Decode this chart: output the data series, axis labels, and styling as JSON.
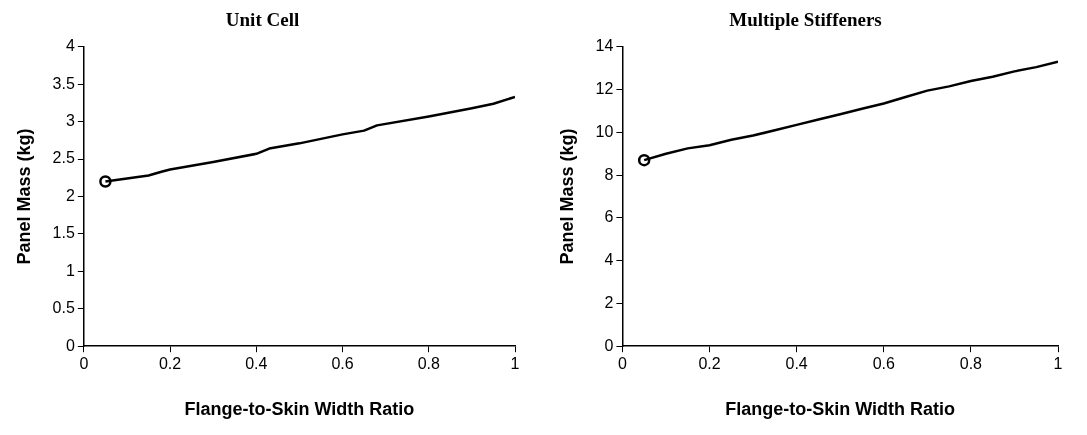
{
  "chart_data": [
    {
      "type": "line",
      "title": "Unit Cell",
      "xlabel": "Flange-to-Skin Width Ratio",
      "ylabel": "Panel Mass (kg)",
      "xlim": [
        0,
        1
      ],
      "xticks": [
        0,
        0.2,
        0.4,
        0.6,
        0.8,
        1
      ],
      "ylim": [
        0,
        4
      ],
      "yticks": [
        0,
        0.5,
        1,
        1.5,
        2,
        2.5,
        3,
        3.5,
        4
      ],
      "grid": false,
      "legend": false,
      "series": [
        {
          "color": "#000000",
          "marker": "none",
          "x": [
            0.05,
            0.1,
            0.15,
            0.18,
            0.2,
            0.3,
            0.4,
            0.43,
            0.5,
            0.6,
            0.65,
            0.68,
            0.8,
            0.9,
            0.95,
            1.0
          ],
          "values": [
            2.2,
            2.24,
            2.28,
            2.33,
            2.36,
            2.46,
            2.57,
            2.64,
            2.71,
            2.83,
            2.88,
            2.95,
            3.07,
            3.18,
            3.24,
            3.33
          ]
        },
        {
          "type": "scatter",
          "color": "#000000",
          "marker": "circle",
          "x": [
            0.05
          ],
          "values": [
            2.2
          ]
        }
      ]
    },
    {
      "type": "line",
      "title": "Multiple Stiffeners",
      "xlabel": "Flange-to-Skin Width Ratio",
      "ylabel": "Panel Mass (kg)",
      "xlim": [
        0,
        1
      ],
      "xticks": [
        0,
        0.2,
        0.4,
        0.6,
        0.8,
        1
      ],
      "ylim": [
        0,
        14
      ],
      "yticks": [
        0,
        2,
        4,
        6,
        8,
        10,
        12,
        14
      ],
      "grid": false,
      "legend": false,
      "series": [
        {
          "color": "#000000",
          "marker": "none",
          "x": [
            0.05,
            0.1,
            0.15,
            0.2,
            0.25,
            0.3,
            0.35,
            0.4,
            0.45,
            0.5,
            0.55,
            0.6,
            0.65,
            0.7,
            0.75,
            0.8,
            0.85,
            0.9,
            0.95,
            1.0
          ],
          "values": [
            8.7,
            9.0,
            9.25,
            9.4,
            9.65,
            9.85,
            10.1,
            10.35,
            10.6,
            10.85,
            11.1,
            11.35,
            11.65,
            11.95,
            12.15,
            12.4,
            12.6,
            12.85,
            13.05,
            13.3
          ]
        },
        {
          "type": "scatter",
          "color": "#000000",
          "marker": "circle",
          "x": [
            0.05
          ],
          "values": [
            8.7
          ]
        }
      ]
    }
  ]
}
